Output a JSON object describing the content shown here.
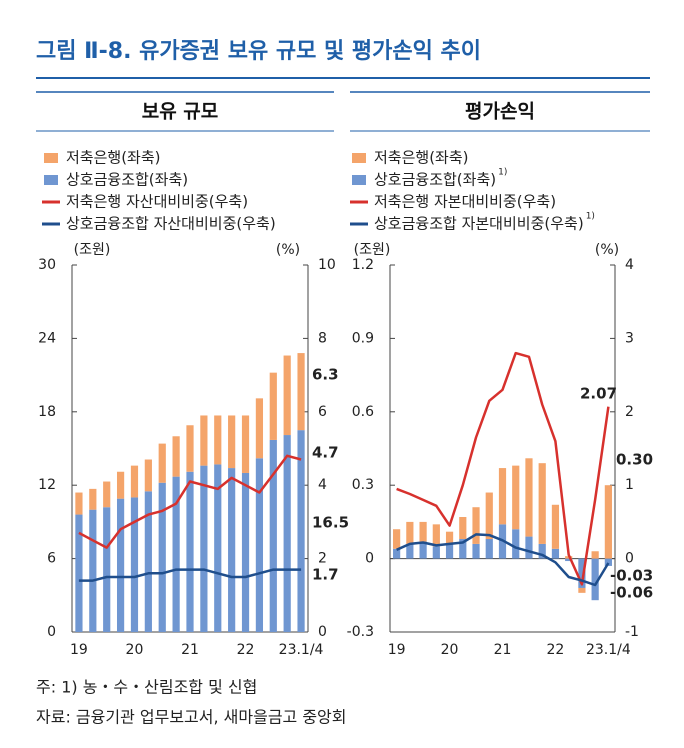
{
  "title": "그림 Ⅱ-8. 유가증권 보유 규모 및 평가손익 추이",
  "notes": [
    "주: 1) 농・수・산림조합 및 신협",
    "자료: 금융기관 업무보고서, 새마을금고 중앙회"
  ],
  "chart_data": [
    {
      "type": "bar",
      "title": "보유 규모",
      "y_unit": "(조원)",
      "y2_unit": "(%)",
      "categories": [
        "19",
        null,
        null,
        null,
        "20",
        null,
        null,
        null,
        "21",
        null,
        null,
        null,
        "22",
        null,
        null,
        null,
        "23.1/4"
      ],
      "ylim": [
        0,
        30
      ],
      "yticks": [
        0,
        6,
        12,
        18,
        24,
        30
      ],
      "y2lim": [
        0,
        10
      ],
      "y2ticks": [
        0,
        2,
        4,
        6,
        8,
        10
      ],
      "series": [
        {
          "name": "저축은행(좌축)",
          "type": "bar",
          "color": "#f4a46a",
          "label_last": true,
          "values": [
            1.8,
            1.7,
            2.1,
            2.2,
            2.6,
            2.6,
            3.2,
            3.3,
            3.8,
            4.1,
            4.0,
            4.3,
            4.7,
            4.9,
            5.5,
            6.5,
            6.3
          ]
        },
        {
          "name": "상호금융조합(좌축)",
          "type": "bar",
          "color": "#6f96d1",
          "label_last": true,
          "values": [
            9.6,
            10.0,
            10.2,
            10.9,
            11.0,
            11.5,
            12.2,
            12.7,
            13.1,
            13.6,
            13.7,
            13.4,
            13.0,
            14.2,
            15.7,
            16.1,
            16.5
          ]
        },
        {
          "name": "저축은행 자산대비비중(우축)",
          "type": "line",
          "axis": "y2",
          "color": "#d7312d",
          "label_last": true,
          "values": [
            2.7,
            2.5,
            2.3,
            2.8,
            3.0,
            3.2,
            3.3,
            3.5,
            4.1,
            4.0,
            3.9,
            4.2,
            4.0,
            3.8,
            4.3,
            4.8,
            4.7
          ]
        },
        {
          "name": "상호금융조합 자산대비비중(우축)",
          "type": "line",
          "axis": "y2",
          "color": "#1f4e8c",
          "label_last": true,
          "values": [
            1.4,
            1.4,
            1.5,
            1.5,
            1.5,
            1.6,
            1.6,
            1.7,
            1.7,
            1.7,
            1.6,
            1.5,
            1.5,
            1.6,
            1.7,
            1.7,
            1.7
          ]
        }
      ]
    },
    {
      "type": "bar",
      "title": "평가손익",
      "y_unit": "(조원)",
      "y2_unit": "(%)",
      "categories": [
        "19",
        null,
        null,
        null,
        "20",
        null,
        null,
        null,
        "21",
        null,
        null,
        null,
        "22",
        null,
        null,
        null,
        "23.1/4"
      ],
      "ylim": [
        -0.3,
        1.2
      ],
      "yticks": [
        -0.3,
        0,
        0.3,
        0.6,
        0.9,
        1.2
      ],
      "y2lim": [
        -1,
        4
      ],
      "y2ticks": [
        -1,
        0,
        1,
        2,
        3,
        4
      ],
      "series": [
        {
          "name": "저축은행(좌축)",
          "type": "bar",
          "color": "#f4a46a",
          "label_last": true,
          "values": [
            0.08,
            0.09,
            0.08,
            0.09,
            0.05,
            0.09,
            0.15,
            0.19,
            0.23,
            0.26,
            0.32,
            0.33,
            0.18,
            0.01,
            -0.02,
            0.03,
            0.3
          ],
          "value_labels": [
            null,
            null,
            null,
            null,
            null,
            null,
            null,
            null,
            null,
            null,
            null,
            null,
            null,
            null,
            null,
            null,
            "0.30"
          ]
        },
        {
          "name": "상호금융조합(좌축)",
          "note": "1)",
          "type": "bar",
          "color": "#6f96d1",
          "label_last": true,
          "values": [
            0.04,
            0.06,
            0.07,
            0.05,
            0.06,
            0.08,
            0.06,
            0.08,
            0.14,
            0.12,
            0.09,
            0.06,
            0.04,
            -0.01,
            -0.12,
            -0.17,
            -0.03
          ]
        },
        {
          "name": "저축은행 자본대비비중(우축)",
          "type": "line",
          "axis": "y2",
          "color": "#d7312d",
          "label_last": true,
          "values": [
            0.95,
            0.88,
            0.8,
            0.72,
            0.45,
            1.0,
            1.65,
            2.15,
            2.3,
            2.8,
            2.75,
            2.1,
            1.6,
            0.05,
            -0.35,
            0.8,
            2.07
          ]
        },
        {
          "name": "상호금융조합 자본대비비중(우축)",
          "note": "1)",
          "type": "line",
          "axis": "y2",
          "color": "#1f4e8c",
          "label_last": true,
          "values": [
            0.12,
            0.2,
            0.22,
            0.18,
            0.2,
            0.22,
            0.33,
            0.32,
            0.25,
            0.15,
            0.1,
            0.05,
            -0.05,
            -0.25,
            -0.3,
            -0.36,
            -0.06
          ]
        }
      ]
    }
  ]
}
